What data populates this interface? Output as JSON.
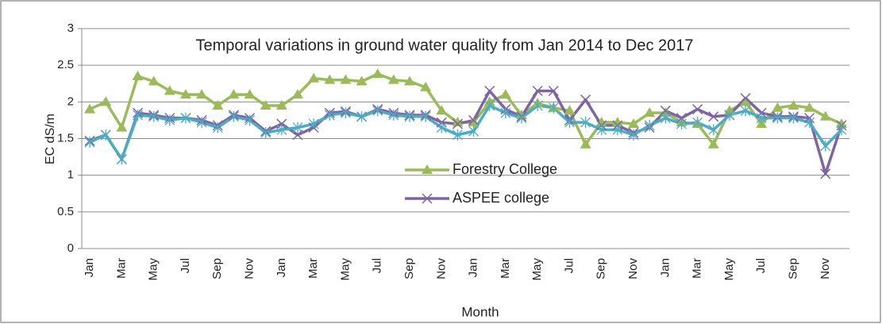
{
  "chart_data": {
    "type": "line",
    "title": "Temporal variations in ground water quality from Jan 2014 to Dec 2017",
    "x_label": "Month",
    "y_label": "EC dS/m",
    "categories": [
      "Jan",
      null,
      "Mar",
      null,
      "May",
      null,
      "Jul",
      null,
      "Sep",
      null,
      "Nov",
      null,
      "Jan",
      null,
      "Mar",
      null,
      "May",
      null,
      "Jul",
      null,
      "Sep",
      null,
      "Nov",
      null,
      "Jan",
      null,
      "Mar",
      null,
      "May",
      null,
      "Jul",
      null,
      "Sep",
      null,
      "Nov",
      null,
      "Jan",
      null,
      "Mar",
      null,
      "May",
      null,
      "Jul",
      null,
      "Sep",
      null,
      "Nov",
      null
    ],
    "ylim": [
      0,
      3
    ],
    "yticks": [
      0,
      0.5,
      1,
      1.5,
      2,
      2.5,
      3
    ],
    "grid": true,
    "series": [
      {
        "name": "Forestry College",
        "color": "#9bbb59",
        "marker": "triangle",
        "values": [
          1.9,
          2.0,
          1.65,
          2.35,
          2.28,
          2.15,
          2.1,
          2.1,
          1.95,
          2.1,
          2.1,
          1.95,
          1.95,
          2.1,
          2.32,
          2.3,
          2.3,
          2.28,
          2.38,
          2.3,
          2.28,
          2.2,
          1.88,
          1.72,
          1.72,
          2.0,
          2.1,
          1.82,
          1.98,
          1.92,
          1.88,
          1.42,
          1.72,
          1.72,
          1.7,
          1.85,
          1.85,
          1.72,
          1.7,
          1.42,
          1.88,
          2.0,
          1.7,
          1.92,
          1.95,
          1.92,
          1.8,
          1.7
        ]
      },
      {
        "name": "ASPEE college",
        "color": "#8064a2",
        "marker": "x",
        "values": [
          1.47,
          1.55,
          1.22,
          1.85,
          1.82,
          1.78,
          1.78,
          1.75,
          1.68,
          1.82,
          1.78,
          1.6,
          1.7,
          1.55,
          1.65,
          1.85,
          1.87,
          1.8,
          1.9,
          1.85,
          1.82,
          1.82,
          1.72,
          1.7,
          1.75,
          2.15,
          1.9,
          1.8,
          2.15,
          2.15,
          1.75,
          2.03,
          1.68,
          1.68,
          1.58,
          1.65,
          1.88,
          1.78,
          1.9,
          1.8,
          1.82,
          2.05,
          1.85,
          1.8,
          1.8,
          1.78,
          1.02,
          1.68
        ]
      },
      {
        "color": "#4bacc6",
        "marker": "star",
        "values": [
          1.45,
          1.55,
          1.22,
          1.82,
          1.8,
          1.75,
          1.78,
          1.72,
          1.65,
          1.8,
          1.75,
          1.58,
          1.62,
          1.65,
          1.7,
          1.82,
          1.85,
          1.8,
          1.88,
          1.82,
          1.8,
          1.8,
          1.65,
          1.55,
          1.6,
          1.95,
          1.85,
          1.78,
          1.95,
          1.92,
          1.72,
          1.72,
          1.62,
          1.62,
          1.55,
          1.68,
          1.78,
          1.7,
          1.72,
          1.62,
          1.82,
          1.88,
          1.78,
          1.78,
          1.78,
          1.72,
          1.4,
          1.62
        ]
      }
    ]
  }
}
